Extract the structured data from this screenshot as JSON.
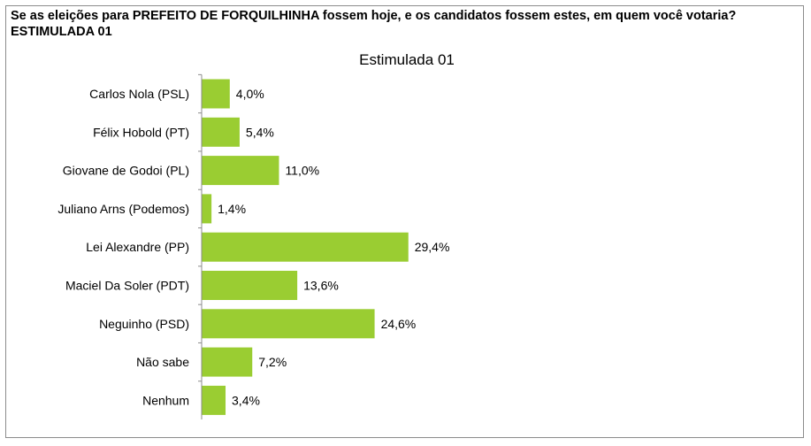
{
  "question": "Se as eleições para PREFEITO DE FORQUILHINHA fossem hoje, e os candidatos fossem estes, em quem você votaria? ESTIMULADA 01",
  "chart_data": {
    "type": "bar",
    "orientation": "horizontal",
    "title": "Estimulada 01",
    "xlabel": "",
    "ylabel": "",
    "categories": [
      "Carlos Nola (PSL)",
      "Félix Hobold (PT)",
      "Giovane de Godoi (PL)",
      "Juliano Arns (Podemos)",
      "Lei Alexandre (PP)",
      "Maciel Da Soler (PDT)",
      "Neguinho (PSD)",
      "Não sabe",
      "Nenhum"
    ],
    "values": [
      4.0,
      5.4,
      11.0,
      1.4,
      29.4,
      13.6,
      24.6,
      7.2,
      3.4
    ],
    "data_labels": [
      "4,0%",
      "5,4%",
      "11,0%",
      "1,4%",
      "29,4%",
      "13,6%",
      "24,6%",
      "7,2%",
      "3,4%"
    ],
    "bar_color": "#9acd32",
    "grid": false,
    "legend": "none"
  }
}
